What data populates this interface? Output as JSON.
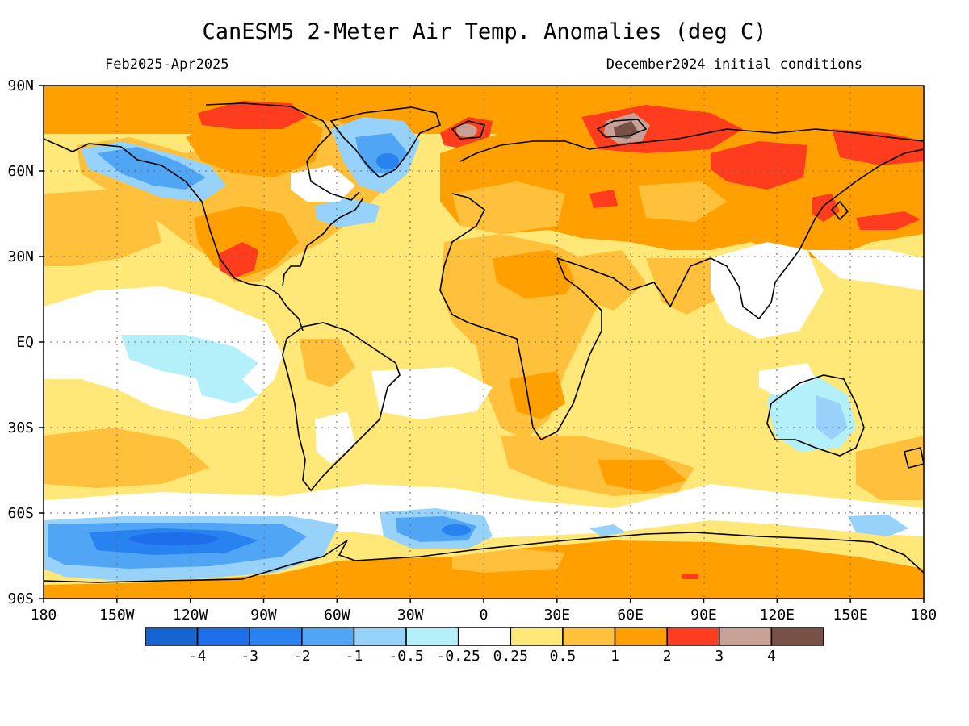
{
  "title": "CanESM5 2-Meter Air Temp. Anomalies (deg C)",
  "subtitle_left": "Feb2025-Apr2025",
  "subtitle_right": "December2024 initial conditions",
  "lat_labels": [
    "90N",
    "60N",
    "30N",
    "EQ",
    "30S",
    "60S",
    "90S"
  ],
  "lon_labels": [
    "180",
    "150W",
    "120W",
    "90W",
    "60W",
    "30W",
    "0",
    "30E",
    "60E",
    "90E",
    "120E",
    "150E",
    "180"
  ],
  "colorbar": {
    "colors": [
      "#1464d2",
      "#1e6eeb",
      "#2882f0",
      "#50a5f5",
      "#96d2fa",
      "#b4f0fa",
      "#ffffff",
      "#ffe878",
      "#ffc03c",
      "#ffa000",
      "#ff3c1e",
      "#c8a096",
      "#785046"
    ],
    "labels": [
      "-4",
      "-3",
      "-2",
      "-1",
      "-0.5",
      "-0.25",
      "0.25",
      "0.5",
      "1",
      "2",
      "3",
      "4"
    ]
  },
  "colors": {
    "ocean_base": "#ffe878",
    "land_base": "#ffc03c",
    "warm": "#ffa000",
    "hot": "#ff3c1e",
    "very_hot": "#c8a096",
    "extreme": "#785046",
    "neutral": "#ffffff",
    "cool_1": "#b4f0fa",
    "cool_2": "#96d2fa",
    "cool_3": "#50a5f5",
    "cool_4": "#2882f0",
    "cool_5": "#1e6eeb"
  }
}
